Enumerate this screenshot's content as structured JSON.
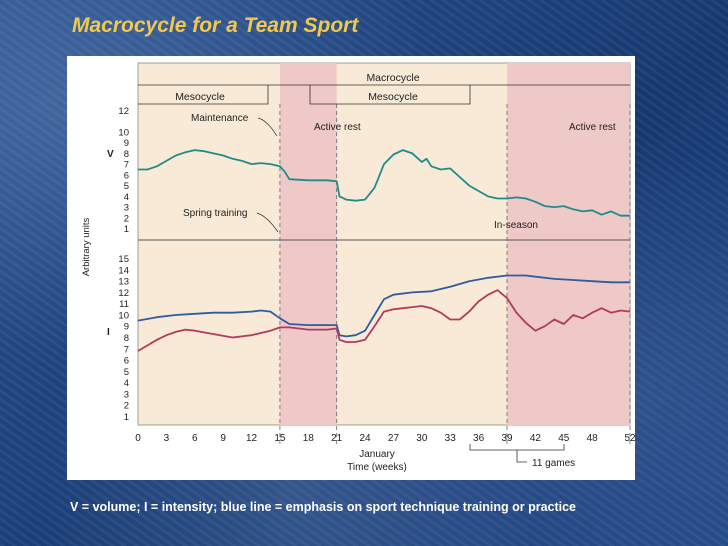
{
  "slide": {
    "title": "Macrocycle for a Team Sport"
  },
  "footer": {
    "note": "V = volume; I = intensity; blue line = emphasis on sport technique training or practice"
  },
  "colors": {
    "title": "#f2c94c",
    "panel_bg": "#f8ead6",
    "shade": "#efc8c8",
    "volume_line": "#1f8c8c",
    "blue_line": "#2e5d9e",
    "red_line": "#b23a5a"
  },
  "chart_data": {
    "type": "line",
    "xlabel": "Time (weeks)",
    "x_month_label": "January",
    "ylabel": "Arbitrary units",
    "x_ticks": [
      0,
      3,
      6,
      9,
      12,
      15,
      18,
      21,
      24,
      27,
      30,
      33,
      36,
      39,
      42,
      45,
      48,
      52
    ],
    "xlim": [
      0,
      52
    ],
    "panels": [
      {
        "label": "V",
        "ylim": [
          0.5,
          12.5
        ],
        "y_ticks": [
          1,
          2,
          3,
          4,
          5,
          6,
          7,
          8,
          9,
          10,
          12
        ]
      },
      {
        "label": "I",
        "ylim": [
          0.5,
          15.5
        ],
        "y_ticks": [
          1,
          2,
          3,
          4,
          5,
          6,
          7,
          8,
          9,
          10,
          11,
          12,
          13,
          14,
          15
        ]
      }
    ],
    "phases": {
      "macrocycle": "Macrocycle",
      "mesocycles": [
        "Mesocycle",
        "Mesocycle"
      ],
      "labels": {
        "maintenance": "Maintenance",
        "active_rest_1": "Active rest",
        "active_rest_2": "Active rest",
        "spring_training": "Spring training",
        "in_season": "In-season",
        "games": "11 games"
      },
      "shaded_weeks": [
        [
          15,
          21
        ],
        [
          39,
          52
        ]
      ]
    },
    "series": [
      {
        "panel": "V",
        "x": [
          0,
          1,
          2,
          3,
          4,
          5,
          6,
          7,
          8,
          9,
          10,
          11,
          12,
          13,
          14,
          15,
          15.5,
          16,
          18,
          20,
          21,
          21.3,
          22,
          23,
          24,
          25,
          26,
          27,
          28,
          29,
          30,
          30.5,
          31,
          32,
          33,
          34,
          35,
          36,
          37,
          38,
          39,
          40,
          41,
          42,
          43,
          44,
          45,
          46,
          47,
          48,
          49,
          50,
          51,
          52
        ],
        "values": [
          6.5,
          6.5,
          6.8,
          7.3,
          7.8,
          8.1,
          8.3,
          8.2,
          8.0,
          7.8,
          7.5,
          7.3,
          7.0,
          7.1,
          7.0,
          6.8,
          6.3,
          5.6,
          5.5,
          5.5,
          5.4,
          4.0,
          3.7,
          3.6,
          3.7,
          4.8,
          7.0,
          7.9,
          8.3,
          8.0,
          7.2,
          7.5,
          6.8,
          6.5,
          6.6,
          5.8,
          5.0,
          4.5,
          4.0,
          3.8,
          3.8,
          3.9,
          3.8,
          3.5,
          3.1,
          3.0,
          3.1,
          2.8,
          2.6,
          2.7,
          2.3,
          2.6,
          2.2,
          2.2
        ]
      },
      {
        "panel": "I",
        "name": "technique",
        "x": [
          0,
          2,
          4,
          6,
          8,
          10,
          12,
          13,
          14,
          15,
          16,
          18,
          20,
          21,
          21.3,
          22,
          23,
          24,
          25,
          26,
          27,
          29,
          31,
          33,
          35,
          37,
          39,
          41,
          42,
          44,
          46,
          48,
          50,
          52
        ],
        "values": [
          9.5,
          9.8,
          10.0,
          10.1,
          10.2,
          10.2,
          10.3,
          10.4,
          10.3,
          9.7,
          9.2,
          9.1,
          9.1,
          9.1,
          8.2,
          8.1,
          8.2,
          8.6,
          10.0,
          11.4,
          11.8,
          12.0,
          12.1,
          12.5,
          13.0,
          13.3,
          13.5,
          13.5,
          13.4,
          13.2,
          13.1,
          13.0,
          12.9,
          12.9
        ]
      },
      {
        "panel": "I",
        "name": "intensity",
        "x": [
          0,
          1,
          2,
          3,
          4,
          5,
          6,
          8,
          10,
          12,
          14,
          15,
          16,
          18,
          20,
          21,
          21.3,
          22,
          23,
          24,
          25,
          26,
          27,
          28,
          29,
          30,
          31,
          32,
          33,
          34,
          35,
          36,
          37,
          38,
          39,
          40,
          41,
          42,
          43,
          44,
          45,
          46,
          47,
          48,
          49,
          50,
          51,
          52
        ],
        "values": [
          6.8,
          7.3,
          7.8,
          8.2,
          8.5,
          8.7,
          8.6,
          8.3,
          8.0,
          8.2,
          8.6,
          8.9,
          8.9,
          8.7,
          8.7,
          8.8,
          7.8,
          7.6,
          7.6,
          7.8,
          9.0,
          10.3,
          10.5,
          10.6,
          10.7,
          10.8,
          10.6,
          10.2,
          9.6,
          9.6,
          10.3,
          11.2,
          11.8,
          12.2,
          11.5,
          10.2,
          9.3,
          8.6,
          9.0,
          9.6,
          9.2,
          10.0,
          9.7,
          10.2,
          10.6,
          10.2,
          10.4,
          10.3
        ]
      }
    ]
  }
}
